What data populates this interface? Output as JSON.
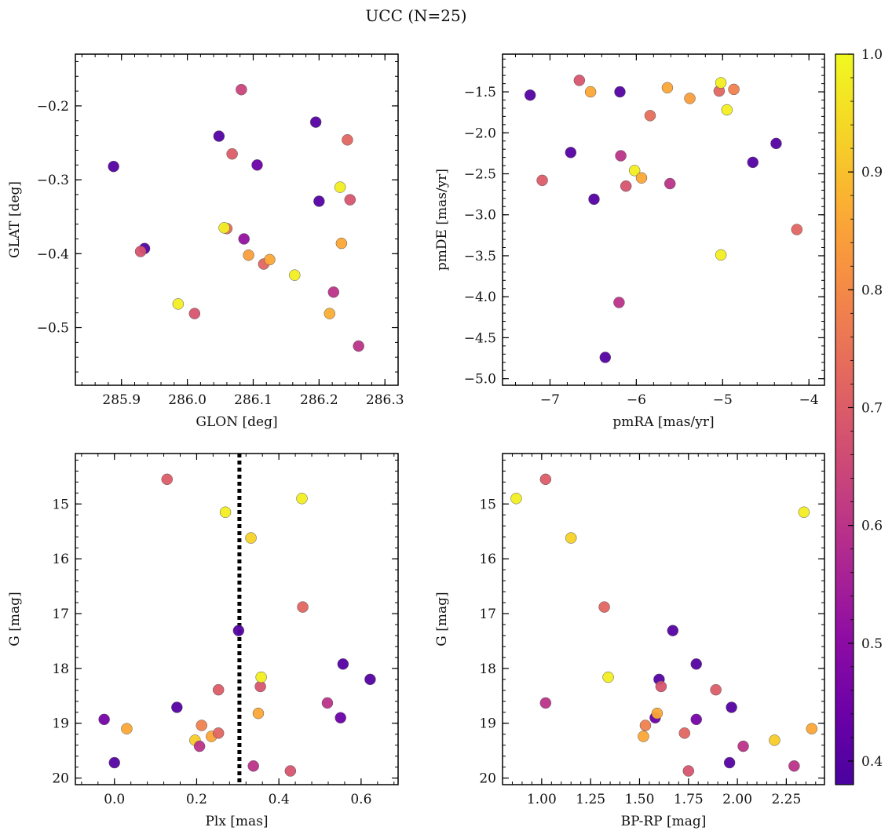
{
  "figure": {
    "title": "UCC (N=25)",
    "colormap": "plasma",
    "dotted_line_color": "#000000",
    "marker_edge_color": "#555555"
  },
  "colorbar": {
    "range": [
      0.38,
      1.0
    ],
    "ticks": [
      0.4,
      0.5,
      0.6,
      0.7,
      0.8,
      0.9,
      1.0
    ],
    "tick_labels": [
      "0.4",
      "0.5",
      "0.6",
      "0.7",
      "0.8",
      "0.9",
      "1.0"
    ]
  },
  "chart_data": [
    {
      "type": "scatter",
      "xlabel": "GLON [deg]",
      "ylabel": "GLAT [deg]",
      "xlim": [
        285.83,
        286.32
      ],
      "ylim": [
        -0.578,
        -0.13
      ],
      "xticks": [
        285.9,
        286.0,
        286.1,
        286.2,
        286.3
      ],
      "xtick_labels": [
        "285.9",
        "286.0",
        "286.1",
        "286.2",
        "286.3"
      ],
      "yticks": [
        -0.5,
        -0.4,
        -0.3,
        -0.2
      ],
      "ytick_labels": [
        "−0.5",
        "−0.4",
        "−0.3",
        "−0.2"
      ],
      "y_inverted": false,
      "points": [
        {
          "x": 285.888,
          "y": -0.282,
          "c": 0.4
        },
        {
          "x": 285.935,
          "y": -0.393,
          "c": 0.4
        },
        {
          "x": 285.929,
          "y": -0.397,
          "c": 0.68
        },
        {
          "x": 285.986,
          "y": -0.468,
          "c": 0.98
        },
        {
          "x": 286.011,
          "y": -0.481,
          "c": 0.68
        },
        {
          "x": 286.048,
          "y": -0.241,
          "c": 0.4
        },
        {
          "x": 286.06,
          "y": -0.366,
          "c": 0.74
        },
        {
          "x": 286.056,
          "y": -0.365,
          "c": 0.98
        },
        {
          "x": 286.068,
          "y": -0.265,
          "c": 0.7
        },
        {
          "x": 286.082,
          "y": -0.178,
          "c": 0.64
        },
        {
          "x": 286.086,
          "y": -0.38,
          "c": 0.52
        },
        {
          "x": 286.093,
          "y": -0.402,
          "c": 0.84
        },
        {
          "x": 286.106,
          "y": -0.28,
          "c": 0.44
        },
        {
          "x": 286.116,
          "y": -0.414,
          "c": 0.72
        },
        {
          "x": 286.125,
          "y": -0.408,
          "c": 0.86
        },
        {
          "x": 286.163,
          "y": -0.429,
          "c": 0.98
        },
        {
          "x": 286.195,
          "y": -0.222,
          "c": 0.4
        },
        {
          "x": 286.2,
          "y": -0.329,
          "c": 0.4
        },
        {
          "x": 286.216,
          "y": -0.481,
          "c": 0.87
        },
        {
          "x": 286.222,
          "y": -0.452,
          "c": 0.6
        },
        {
          "x": 286.232,
          "y": -0.31,
          "c": 0.98
        },
        {
          "x": 286.234,
          "y": -0.386,
          "c": 0.86
        },
        {
          "x": 286.243,
          "y": -0.246,
          "c": 0.72
        },
        {
          "x": 286.247,
          "y": -0.327,
          "c": 0.68
        },
        {
          "x": 286.26,
          "y": -0.525,
          "c": 0.6
        }
      ]
    },
    {
      "type": "scatter",
      "xlabel": "pmRA [mas/yr]",
      "ylabel": "pmDE [mas/yr]",
      "xlim": [
        -7.55,
        -3.82
      ],
      "ylim": [
        -5.08,
        -1.04
      ],
      "xticks": [
        -7,
        -6,
        -5,
        -4
      ],
      "xtick_labels": [
        "−7",
        "−6",
        "−5",
        "−4"
      ],
      "yticks": [
        -5.0,
        -4.5,
        -4.0,
        -3.5,
        -3.0,
        -2.5,
        -2.0,
        -1.5
      ],
      "ytick_labels": [
        "−5.0",
        "−4.5",
        "−4.0",
        "−3.5",
        "−3.0",
        "−2.5",
        "−2.0",
        "−1.5"
      ],
      "y_inverted": false,
      "points": [
        {
          "x": -7.23,
          "y": -1.54,
          "c": 0.4
        },
        {
          "x": -7.09,
          "y": -2.58,
          "c": 0.7
        },
        {
          "x": -6.76,
          "y": -2.24,
          "c": 0.4
        },
        {
          "x": -6.66,
          "y": -1.36,
          "c": 0.68
        },
        {
          "x": -6.53,
          "y": -1.5,
          "c": 0.86
        },
        {
          "x": -6.49,
          "y": -2.81,
          "c": 0.4
        },
        {
          "x": -6.36,
          "y": -4.74,
          "c": 0.4
        },
        {
          "x": -6.2,
          "y": -4.07,
          "c": 0.6
        },
        {
          "x": -6.19,
          "y": -1.5,
          "c": 0.4
        },
        {
          "x": -6.18,
          "y": -2.28,
          "c": 0.6
        },
        {
          "x": -6.12,
          "y": -2.65,
          "c": 0.68
        },
        {
          "x": -6.02,
          "y": -2.46,
          "c": 0.98
        },
        {
          "x": -5.94,
          "y": -2.55,
          "c": 0.86
        },
        {
          "x": -5.84,
          "y": -1.79,
          "c": 0.74
        },
        {
          "x": -5.64,
          "y": -1.45,
          "c": 0.86
        },
        {
          "x": -5.61,
          "y": -2.62,
          "c": 0.6
        },
        {
          "x": -5.38,
          "y": -1.58,
          "c": 0.84
        },
        {
          "x": -5.04,
          "y": -1.49,
          "c": 0.72
        },
        {
          "x": -5.02,
          "y": -1.39,
          "c": 0.98
        },
        {
          "x": -5.02,
          "y": -3.49,
          "c": 0.98
        },
        {
          "x": -4.95,
          "y": -1.72,
          "c": 0.98
        },
        {
          "x": -4.87,
          "y": -1.47,
          "c": 0.78
        },
        {
          "x": -4.65,
          "y": -2.36,
          "c": 0.4
        },
        {
          "x": -4.38,
          "y": -2.13,
          "c": 0.4
        },
        {
          "x": -4.14,
          "y": -3.18,
          "c": 0.72
        }
      ]
    },
    {
      "type": "scatter",
      "xlabel": "Plx [mas]",
      "ylabel": "G [mag]",
      "xlim": [
        -0.095,
        0.69
      ],
      "ylim": [
        20.12,
        14.08
      ],
      "xticks": [
        0.0,
        0.2,
        0.4,
        0.6
      ],
      "xtick_labels": [
        "0.0",
        "0.2",
        "0.4",
        "0.6"
      ],
      "yticks": [
        15,
        16,
        17,
        18,
        19,
        20
      ],
      "ytick_labels": [
        "15",
        "16",
        "17",
        "18",
        "19",
        "20"
      ],
      "y_inverted": true,
      "vline": 0.304,
      "points": [
        {
          "x": -0.025,
          "y": 18.93,
          "c": 0.46
        },
        {
          "x": 0.0,
          "y": 19.72,
          "c": 0.4
        },
        {
          "x": 0.03,
          "y": 19.1,
          "c": 0.86
        },
        {
          "x": 0.128,
          "y": 14.55,
          "c": 0.7
        },
        {
          "x": 0.152,
          "y": 18.71,
          "c": 0.4
        },
        {
          "x": 0.196,
          "y": 19.31,
          "c": 0.92
        },
        {
          "x": 0.207,
          "y": 19.42,
          "c": 0.6
        },
        {
          "x": 0.212,
          "y": 19.04,
          "c": 0.78
        },
        {
          "x": 0.236,
          "y": 19.24,
          "c": 0.86
        },
        {
          "x": 0.253,
          "y": 19.18,
          "c": 0.72
        },
        {
          "x": 0.253,
          "y": 18.39,
          "c": 0.7
        },
        {
          "x": 0.27,
          "y": 15.15,
          "c": 0.98
        },
        {
          "x": 0.302,
          "y": 17.31,
          "c": 0.4
        },
        {
          "x": 0.332,
          "y": 15.62,
          "c": 0.93
        },
        {
          "x": 0.338,
          "y": 19.78,
          "c": 0.6
        },
        {
          "x": 0.35,
          "y": 18.82,
          "c": 0.86
        },
        {
          "x": 0.355,
          "y": 18.33,
          "c": 0.68
        },
        {
          "x": 0.357,
          "y": 18.16,
          "c": 0.98
        },
        {
          "x": 0.428,
          "y": 19.87,
          "c": 0.68
        },
        {
          "x": 0.456,
          "y": 14.9,
          "c": 0.98
        },
        {
          "x": 0.458,
          "y": 16.88,
          "c": 0.72
        },
        {
          "x": 0.518,
          "y": 18.63,
          "c": 0.6
        },
        {
          "x": 0.55,
          "y": 18.9,
          "c": 0.44
        },
        {
          "x": 0.556,
          "y": 17.92,
          "c": 0.4
        },
        {
          "x": 0.622,
          "y": 18.2,
          "c": 0.4
        }
      ]
    },
    {
      "type": "scatter",
      "xlabel": "BP-RP [mag]",
      "ylabel": "G [mag]",
      "xlim": [
        0.8,
        2.445
      ],
      "ylim": [
        20.12,
        14.08
      ],
      "xticks": [
        1.0,
        1.25,
        1.5,
        1.75,
        2.0,
        2.25
      ],
      "xtick_labels": [
        "1.00",
        "1.25",
        "1.50",
        "1.75",
        "2.00",
        "2.25"
      ],
      "yticks": [
        15,
        16,
        17,
        18,
        19,
        20
      ],
      "ytick_labels": [
        "15",
        "16",
        "17",
        "18",
        "19",
        "20"
      ],
      "y_inverted": true,
      "points": [
        {
          "x": 0.87,
          "y": 14.9,
          "c": 0.98
        },
        {
          "x": 1.02,
          "y": 14.55,
          "c": 0.7
        },
        {
          "x": 1.02,
          "y": 18.63,
          "c": 0.6
        },
        {
          "x": 1.15,
          "y": 15.62,
          "c": 0.93
        },
        {
          "x": 1.32,
          "y": 16.88,
          "c": 0.72
        },
        {
          "x": 1.34,
          "y": 18.16,
          "c": 0.98
        },
        {
          "x": 1.52,
          "y": 19.24,
          "c": 0.86
        },
        {
          "x": 1.53,
          "y": 19.04,
          "c": 0.78
        },
        {
          "x": 1.58,
          "y": 18.9,
          "c": 0.44
        },
        {
          "x": 1.59,
          "y": 18.82,
          "c": 0.86
        },
        {
          "x": 1.6,
          "y": 18.2,
          "c": 0.4
        },
        {
          "x": 1.61,
          "y": 18.33,
          "c": 0.68
        },
        {
          "x": 1.67,
          "y": 17.31,
          "c": 0.4
        },
        {
          "x": 1.73,
          "y": 19.18,
          "c": 0.72
        },
        {
          "x": 1.75,
          "y": 19.87,
          "c": 0.68
        },
        {
          "x": 1.79,
          "y": 18.93,
          "c": 0.46
        },
        {
          "x": 1.79,
          "y": 17.92,
          "c": 0.4
        },
        {
          "x": 1.89,
          "y": 18.39,
          "c": 0.7
        },
        {
          "x": 1.96,
          "y": 19.72,
          "c": 0.4
        },
        {
          "x": 1.97,
          "y": 18.71,
          "c": 0.4
        },
        {
          "x": 2.03,
          "y": 19.42,
          "c": 0.6
        },
        {
          "x": 2.19,
          "y": 19.31,
          "c": 0.92
        },
        {
          "x": 2.29,
          "y": 19.78,
          "c": 0.6
        },
        {
          "x": 2.34,
          "y": 15.15,
          "c": 0.98
        },
        {
          "x": 2.38,
          "y": 19.1,
          "c": 0.86
        }
      ]
    }
  ]
}
